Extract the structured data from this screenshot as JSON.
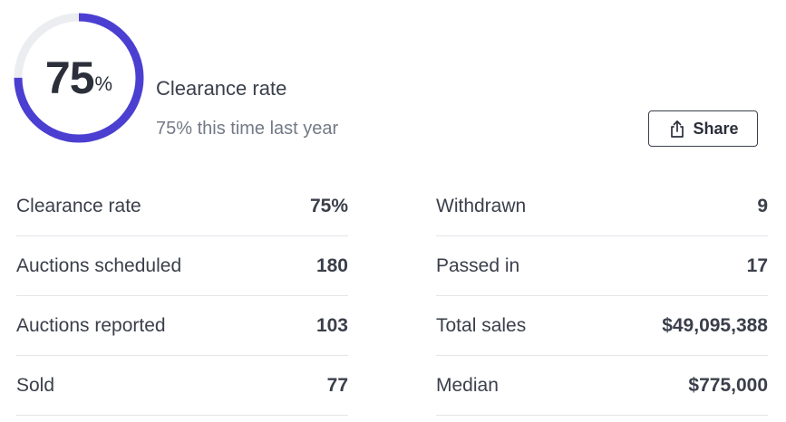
{
  "summary": {
    "rate_number": "75",
    "rate_unit": "%",
    "rate_fraction": 0.75,
    "title": "Clearance rate",
    "comparison": "75% this time last year",
    "share_label": "Share",
    "share_icon": "share-icon"
  },
  "colors": {
    "gauge_fill": "#4b3fd1",
    "gauge_track": "#ecedf1",
    "text_primary": "#3a3f4b",
    "text_secondary": "#737a87",
    "divider": "#e3e5e9"
  },
  "stats": {
    "left": [
      {
        "label": "Clearance rate",
        "value": "75%"
      },
      {
        "label": "Auctions scheduled",
        "value": "180"
      },
      {
        "label": "Auctions reported",
        "value": "103"
      },
      {
        "label": "Sold",
        "value": "77"
      }
    ],
    "right": [
      {
        "label": "Withdrawn",
        "value": "9"
      },
      {
        "label": "Passed in",
        "value": "17"
      },
      {
        "label": "Total sales",
        "value": "$49,095,388"
      },
      {
        "label": "Median",
        "value": "$775,000"
      }
    ]
  }
}
